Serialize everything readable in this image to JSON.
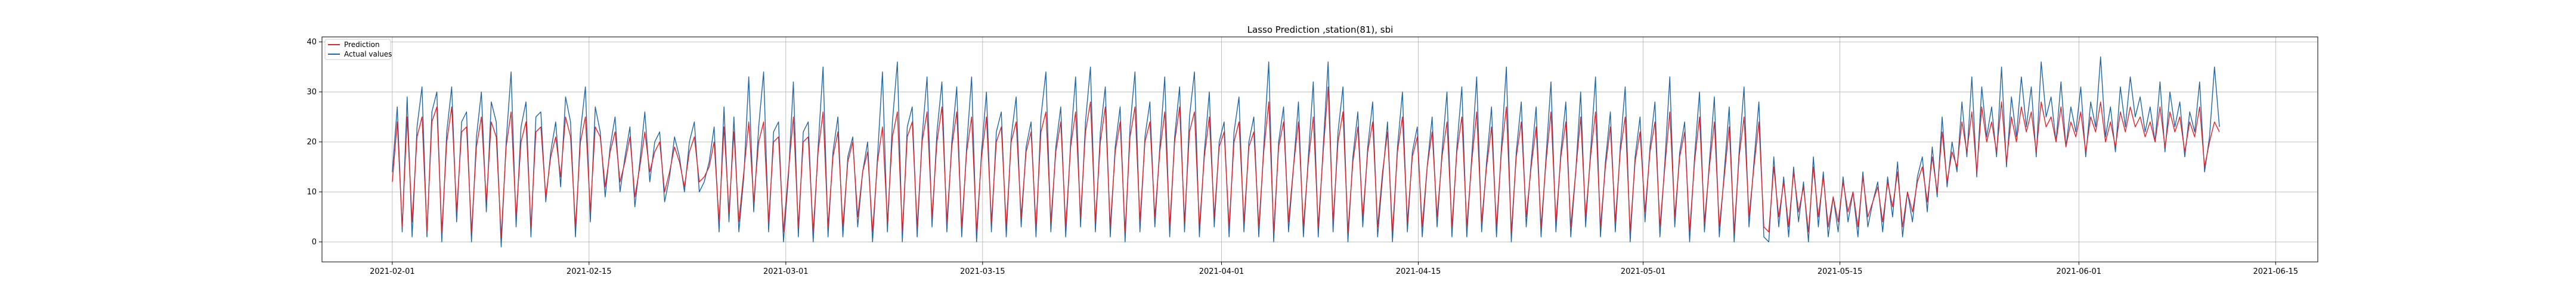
{
  "chart_data": {
    "type": "line",
    "title": "Lasso Prediction ,station(81), sbi",
    "xlabel": "",
    "ylabel": "",
    "x_range": [
      "2021-01-27",
      "2021-06-18"
    ],
    "x_ticks": [
      "2021-02-01",
      "2021-02-15",
      "2021-03-01",
      "2021-03-15",
      "2021-04-01",
      "2021-04-15",
      "2021-05-01",
      "2021-05-15",
      "2021-06-01",
      "2021-06-15"
    ],
    "ylim": [
      -4,
      41
    ],
    "y_ticks": [
      0,
      10,
      20,
      30,
      40
    ],
    "grid": true,
    "legend_position": "top-left",
    "x_start": "2021-02-01",
    "x_end": "2021-06-11",
    "series": [
      {
        "name": "Prediction",
        "color": "#e0242a",
        "values": [
          12,
          24,
          3,
          25,
          4,
          21,
          25,
          2,
          24,
          27,
          2,
          20,
          27,
          6,
          22,
          23,
          2,
          19,
          25,
          8,
          24,
          21,
          1,
          19,
          26,
          5,
          20,
          24,
          3,
          22,
          23,
          9,
          17,
          21,
          13,
          25,
          21,
          3,
          20,
          25,
          6,
          23,
          21,
          11,
          18,
          22,
          12,
          16,
          21,
          9,
          15,
          22,
          14,
          18,
          20,
          10,
          14,
          19,
          16,
          11,
          18,
          21,
          12,
          13,
          15,
          20,
          4,
          23,
          6,
          22,
          4,
          14,
          24,
          8,
          20,
          24,
          4,
          20,
          21,
          2,
          14,
          25,
          3,
          20,
          21,
          2,
          18,
          26,
          3,
          17,
          22,
          3,
          16,
          20,
          5,
          14,
          18,
          2,
          16,
          23,
          4,
          21,
          26,
          2,
          21,
          24,
          3,
          20,
          26,
          5,
          20,
          27,
          4,
          19,
          26,
          3,
          18,
          25,
          2,
          17,
          25,
          4,
          20,
          23,
          3,
          20,
          24,
          5,
          18,
          22,
          3,
          22,
          26,
          4,
          18,
          24,
          3,
          19,
          26,
          5,
          22,
          28,
          4,
          20,
          27,
          3,
          18,
          24,
          2,
          21,
          27,
          4,
          20,
          24,
          5,
          18,
          26,
          3,
          20,
          27,
          4,
          22,
          26,
          3,
          17,
          25,
          5,
          19,
          22,
          3,
          20,
          24,
          4,
          19,
          22,
          3,
          18,
          28,
          2,
          19,
          24,
          4,
          15,
          24,
          3,
          16,
          25,
          3,
          18,
          31,
          4,
          20,
          26,
          2,
          16,
          23,
          5,
          18,
          24,
          3,
          14,
          22,
          2,
          18,
          25,
          4,
          17,
          21,
          3,
          15,
          22,
          5,
          17,
          24,
          3,
          18,
          25,
          3,
          16,
          26,
          4,
          15,
          23,
          3,
          18,
          27,
          2,
          17,
          24,
          5,
          15,
          23,
          3,
          16,
          26,
          4,
          17,
          24,
          3,
          14,
          25,
          5,
          17,
          26,
          3,
          15,
          23,
          4,
          18,
          25,
          2,
          16,
          22,
          6,
          18,
          24,
          3,
          15,
          26,
          5,
          17,
          22,
          2,
          16,
          25,
          4,
          15,
          24,
          3,
          13,
          23,
          2,
          17,
          25,
          5,
          15,
          24,
          3,
          2,
          15,
          5,
          12,
          3,
          14,
          6,
          11,
          2,
          15,
          5,
          13,
          3,
          9,
          4,
          12,
          6,
          10,
          3,
          13,
          5,
          8,
          11,
          4,
          12,
          7,
          14,
          3,
          10,
          6,
          12,
          15,
          8,
          17,
          10,
          22,
          12,
          18,
          15,
          24,
          18,
          26,
          14,
          27,
          20,
          24,
          18,
          28,
          16,
          25,
          20,
          27,
          22,
          26,
          18,
          28,
          23,
          25,
          20,
          27,
          19,
          24,
          21,
          26,
          18,
          25,
          22,
          28,
          20,
          24,
          19,
          26,
          22,
          27,
          23,
          25,
          21,
          24,
          20,
          27,
          19,
          26,
          22,
          25,
          18,
          24,
          21,
          27,
          15,
          20,
          24,
          22
        ],
        "note_values_shown": ""
      },
      {
        "name": "Actual values",
        "color": "#1f66a8",
        "values": [
          14,
          27,
          2,
          29,
          1,
          23,
          31,
          1,
          26,
          30,
          0,
          22,
          31,
          4,
          24,
          26,
          0,
          21,
          30,
          6,
          28,
          24,
          -1,
          20,
          34,
          3,
          23,
          28,
          1,
          25,
          26,
          8,
          18,
          24,
          11,
          29,
          24,
          1,
          22,
          31,
          4,
          27,
          22,
          9,
          19,
          25,
          10,
          17,
          23,
          7,
          16,
          26,
          12,
          20,
          22,
          8,
          13,
          21,
          17,
          10,
          20,
          24,
          10,
          12,
          16,
          23,
          2,
          27,
          4,
          25,
          2,
          13,
          33,
          6,
          23,
          34,
          2,
          22,
          24,
          0,
          13,
          32,
          1,
          22,
          24,
          0,
          19,
          35,
          1,
          18,
          25,
          1,
          17,
          21,
          3,
          14,
          20,
          0,
          17,
          34,
          2,
          24,
          36,
          0,
          23,
          27,
          1,
          21,
          33,
          3,
          22,
          32,
          2,
          20,
          31,
          1,
          19,
          33,
          0,
          18,
          30,
          2,
          22,
          26,
          1,
          21,
          29,
          3,
          19,
          24,
          1,
          25,
          34,
          2,
          19,
          27,
          1,
          20,
          33,
          3,
          24,
          35,
          2,
          22,
          31,
          1,
          19,
          27,
          0,
          23,
          34,
          2,
          21,
          28,
          3,
          19,
          33,
          1,
          21,
          31,
          2,
          25,
          34,
          1,
          18,
          30,
          3,
          20,
          24,
          1,
          22,
          29,
          2,
          20,
          25,
          1,
          19,
          36,
          0,
          20,
          27,
          2,
          15,
          28,
          1,
          17,
          32,
          1,
          19,
          36,
          2,
          22,
          31,
          0,
          17,
          26,
          3,
          19,
          28,
          1,
          13,
          24,
          0,
          19,
          30,
          2,
          18,
          23,
          1,
          15,
          25,
          3,
          18,
          30,
          1,
          19,
          31,
          1,
          17,
          33,
          2,
          16,
          27,
          1,
          19,
          35,
          0,
          18,
          28,
          3,
          16,
          27,
          1,
          17,
          32,
          2,
          18,
          28,
          1,
          14,
          30,
          3,
          18,
          33,
          1,
          16,
          26,
          2,
          19,
          31,
          0,
          17,
          25,
          4,
          19,
          28,
          1,
          16,
          33,
          3,
          18,
          24,
          0,
          17,
          30,
          2,
          16,
          29,
          1,
          14,
          27,
          0,
          18,
          31,
          3,
          16,
          28,
          1,
          0,
          17,
          3,
          13,
          1,
          15,
          4,
          12,
          0,
          17,
          3,
          14,
          1,
          9,
          2,
          13,
          4,
          10,
          1,
          14,
          3,
          8,
          12,
          2,
          13,
          5,
          16,
          1,
          10,
          4,
          13,
          17,
          6,
          19,
          9,
          25,
          11,
          20,
          14,
          28,
          17,
          33,
          13,
          31,
          21,
          27,
          17,
          35,
          15,
          29,
          21,
          33,
          23,
          31,
          17,
          36,
          25,
          29,
          20,
          32,
          19,
          27,
          22,
          31,
          17,
          28,
          23,
          37,
          21,
          27,
          18,
          31,
          23,
          33,
          25,
          29,
          22,
          27,
          20,
          32,
          18,
          30,
          23,
          28,
          17,
          26,
          22,
          32,
          14,
          21,
          35,
          23
        ]
      }
    ]
  }
}
